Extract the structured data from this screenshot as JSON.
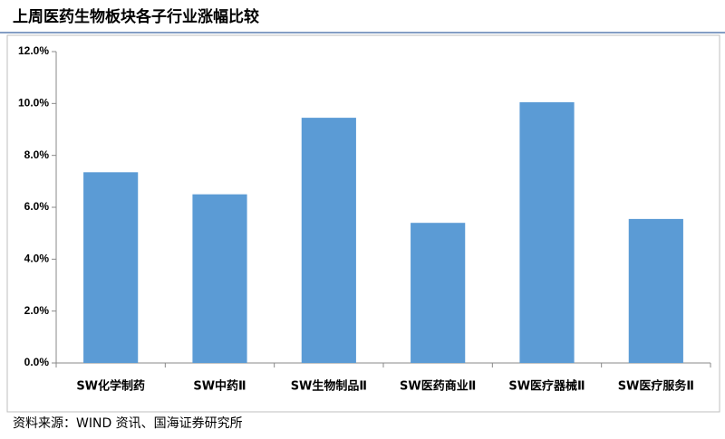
{
  "chart_data": {
    "type": "bar",
    "title": "上周医药生物板块各子行业涨幅比较",
    "categories": [
      "SW化学制药",
      "SW中药Ⅱ",
      "SW生物制品Ⅱ",
      "SW医药商业Ⅱ",
      "SW医疗器械Ⅱ",
      "SW医疗服务Ⅱ"
    ],
    "values": [
      7.35,
      6.5,
      9.45,
      5.4,
      10.05,
      5.55
    ],
    "color": "#5b9bd5",
    "ylim": [
      0,
      12
    ],
    "yticks": [
      {
        "value": 0,
        "label": "0.0%"
      },
      {
        "value": 2,
        "label": "2.0%"
      },
      {
        "value": 4,
        "label": "4.0%"
      },
      {
        "value": 6,
        "label": "6.0%"
      },
      {
        "value": 8,
        "label": "8.0%"
      },
      {
        "value": 10,
        "label": "10.0%"
      },
      {
        "value": 12,
        "label": "12.0%"
      }
    ],
    "grid": false,
    "source": "资料来源：WIND 资讯、国海证券研究所"
  }
}
